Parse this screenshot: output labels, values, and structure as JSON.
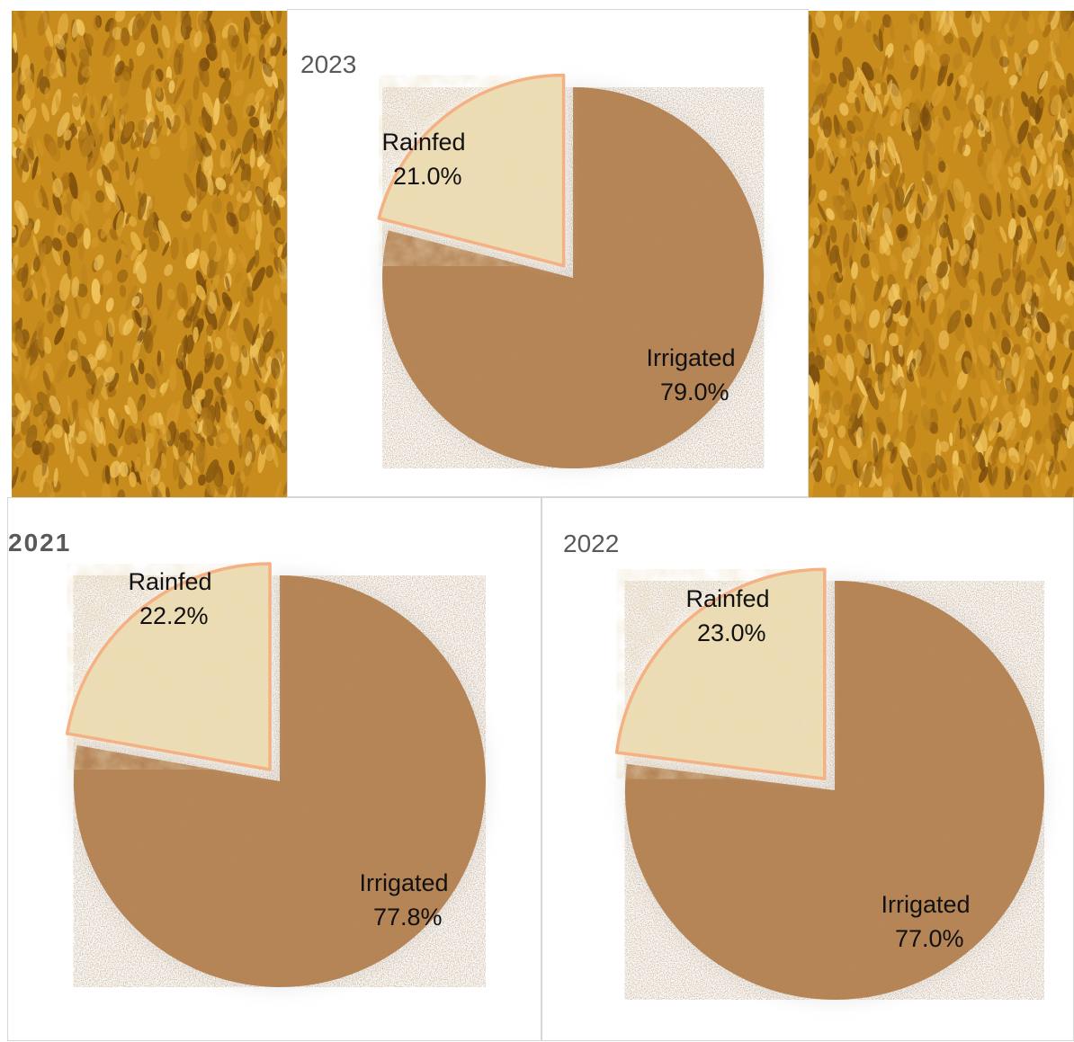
{
  "colors": {
    "rainfed_fill": "#eddcb2",
    "rainfed_edge": "#f4b183",
    "irrigated_fill": "#b98656",
    "grain_base": "#c88c1c"
  },
  "chart_data": [
    {
      "type": "pie",
      "title": "2023",
      "slices": [
        {
          "label": "Rainfed",
          "value": 21.0,
          "value_label": "21.0%",
          "exploded": true
        },
        {
          "label": "Irrigated",
          "value": 79.0,
          "value_label": "79.0%",
          "exploded": false
        }
      ]
    },
    {
      "type": "pie",
      "title": "2021",
      "slices": [
        {
          "label": "Rainfed",
          "value": 22.2,
          "value_label": "22.2%",
          "exploded": true
        },
        {
          "label": "Irrigated",
          "value": 77.8,
          "value_label": "77.8%",
          "exploded": false
        }
      ]
    },
    {
      "type": "pie",
      "title": "2022",
      "slices": [
        {
          "label": "Rainfed",
          "value": 23.0,
          "value_label": "23.0%",
          "exploded": true
        },
        {
          "label": "Irrigated",
          "value": 77.0,
          "value_label": "77.0%",
          "exploded": false
        }
      ]
    }
  ]
}
